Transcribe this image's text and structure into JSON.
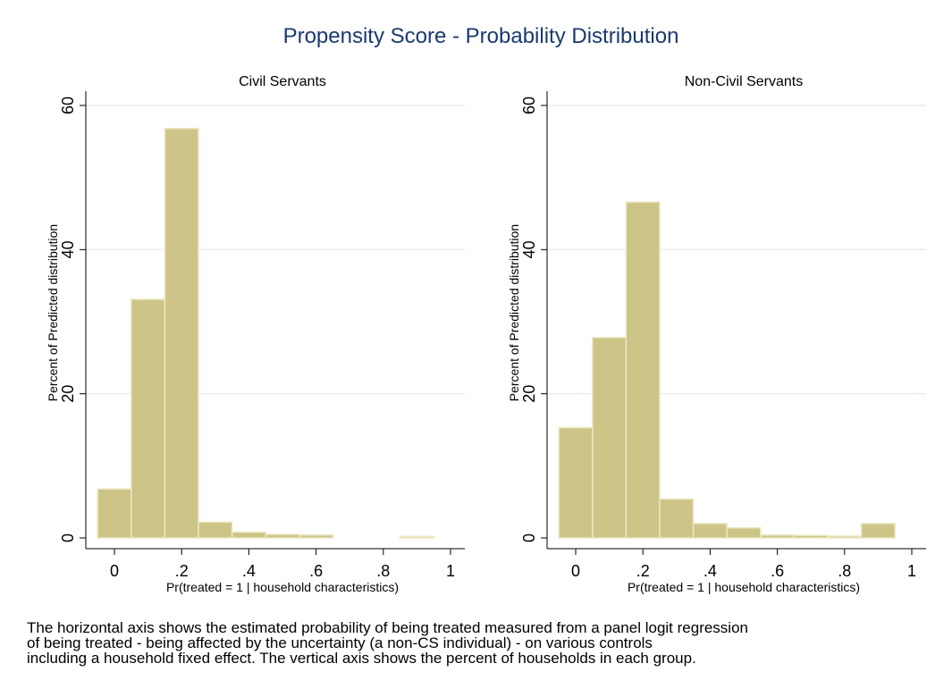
{
  "title": "Propensity Score - Probability Distribution",
  "colors": {
    "title": "#1a3a6e",
    "bar_fill": "#cdc487",
    "bar_stroke": "#ece8c4",
    "grid": "#e6eef3",
    "axis": "#000000"
  },
  "chart_data": [
    {
      "type": "bar",
      "subtitle": "Civil Servants",
      "xlabel": "Pr(treated = 1 | household characteristics)",
      "ylabel": "Percent of Predicted distribution",
      "xlim": [
        -0.05,
        1
      ],
      "ylim": [
        0,
        60
      ],
      "xticks": [
        0,
        0.2,
        0.4,
        0.6,
        0.8,
        1
      ],
      "xtick_labels": [
        "0",
        ".2",
        ".4",
        ".6",
        ".8",
        "1"
      ],
      "yticks": [
        0,
        20,
        40,
        60
      ],
      "ytick_labels": [
        "0",
        "20",
        "40",
        "60"
      ],
      "grid": true,
      "bins": [
        {
          "from": -0.05,
          "to": 0.05,
          "value": 6.8
        },
        {
          "from": 0.05,
          "to": 0.15,
          "value": 33.1
        },
        {
          "from": 0.15,
          "to": 0.25,
          "value": 56.8
        },
        {
          "from": 0.25,
          "to": 0.35,
          "value": 2.2
        },
        {
          "from": 0.35,
          "to": 0.45,
          "value": 0.8
        },
        {
          "from": 0.45,
          "to": 0.55,
          "value": 0.5
        },
        {
          "from": 0.55,
          "to": 0.65,
          "value": 0.4
        },
        {
          "from": 0.85,
          "to": 0.95,
          "value": 0.2
        }
      ]
    },
    {
      "type": "bar",
      "subtitle": "Non-Civil Servants",
      "xlabel": "Pr(treated = 1 | household characteristics)",
      "ylabel": "Percent of Predicted distribution",
      "xlim": [
        -0.05,
        1
      ],
      "ylim": [
        0,
        60
      ],
      "xticks": [
        0,
        0.2,
        0.4,
        0.6,
        0.8,
        1
      ],
      "xtick_labels": [
        "0",
        ".2",
        ".4",
        ".6",
        ".8",
        "1"
      ],
      "yticks": [
        0,
        20,
        40,
        60
      ],
      "ytick_labels": [
        "0",
        "20",
        "40",
        "60"
      ],
      "grid": true,
      "bins": [
        {
          "from": -0.05,
          "to": 0.05,
          "value": 15.3
        },
        {
          "from": 0.05,
          "to": 0.15,
          "value": 27.8
        },
        {
          "from": 0.15,
          "to": 0.25,
          "value": 46.6
        },
        {
          "from": 0.25,
          "to": 0.35,
          "value": 5.4
        },
        {
          "from": 0.35,
          "to": 0.45,
          "value": 2.0
        },
        {
          "from": 0.45,
          "to": 0.55,
          "value": 1.4
        },
        {
          "from": 0.55,
          "to": 0.65,
          "value": 0.4
        },
        {
          "from": 0.65,
          "to": 0.75,
          "value": 0.35
        },
        {
          "from": 0.75,
          "to": 0.85,
          "value": 0.25
        },
        {
          "from": 0.85,
          "to": 0.95,
          "value": 2.0
        }
      ]
    }
  ],
  "caption": [
    "The horizontal axis shows the estimated probability of being treated measured from a panel logit regression",
    "of being treated - being affected by the uncertainty (a non-CS individual) - on various controls",
    "including a household fixed effect. The vertical axis shows the percent of households in each group."
  ]
}
